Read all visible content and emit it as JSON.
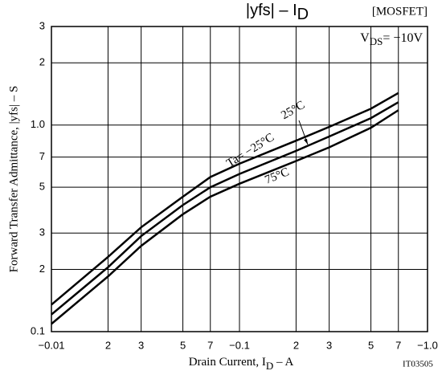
{
  "chart_data": {
    "type": "line",
    "title": "|yfs|  –  I",
    "title_sub": "D",
    "tag": "[MOSFET]",
    "annotation": "V",
    "annotation_sub": "DS",
    "annotation_rest": "= −10V",
    "x_label": "Drain Current, I",
    "x_label_sub": "D",
    "x_label_rest": "  –  A",
    "y_label": "Forward Transfer Admittance, |yfs|  –  S",
    "code": "IT03505",
    "log_x": true,
    "log_y": true,
    "grid": true,
    "color": "#000000",
    "xlim": [
      -0.01,
      -1.0
    ],
    "xticks": [
      {
        "value": -0.01,
        "label": "−0.01"
      },
      {
        "value": -0.02,
        "label": "2"
      },
      {
        "value": -0.03,
        "label": "3"
      },
      {
        "value": -0.05,
        "label": "5"
      },
      {
        "value": -0.07,
        "label": "7"
      },
      {
        "value": -0.1,
        "label": "−0.1"
      },
      {
        "value": -0.2,
        "label": "2"
      },
      {
        "value": -0.3,
        "label": "3"
      },
      {
        "value": -0.5,
        "label": "5"
      },
      {
        "value": -0.7,
        "label": "7"
      },
      {
        "value": -1.0,
        "label": "−1.0"
      }
    ],
    "ylim": [
      0.1,
      3
    ],
    "yticks": [
      0.1,
      {
        "value": 0.2,
        "label": "2"
      },
      {
        "value": 0.3,
        "label": "3"
      },
      {
        "value": 0.5,
        "label": "5"
      },
      {
        "value": 0.7,
        "label": "7"
      },
      {
        "value": 1.0,
        "label": "1.0"
      },
      2,
      3
    ],
    "x": [
      -0.01,
      -0.02,
      -0.03,
      -0.05,
      -0.07,
      -0.1,
      -0.2,
      -0.3,
      -0.5,
      -0.7
    ],
    "series": [
      {
        "name": "Ta= −25°C",
        "color": "#000000",
        "values": [
          0.135,
          0.23,
          0.32,
          0.45,
          0.56,
          0.65,
          0.84,
          0.98,
          1.2,
          1.43
        ]
      },
      {
        "name": "25°C",
        "color": "#000000",
        "values": [
          0.121,
          0.205,
          0.29,
          0.41,
          0.5,
          0.58,
          0.75,
          0.88,
          1.08,
          1.29
        ]
      },
      {
        "name": "75°C",
        "color": "#000000",
        "values": [
          0.109,
          0.185,
          0.26,
          0.37,
          0.45,
          0.52,
          0.67,
          0.78,
          0.97,
          1.18
        ]
      }
    ]
  }
}
